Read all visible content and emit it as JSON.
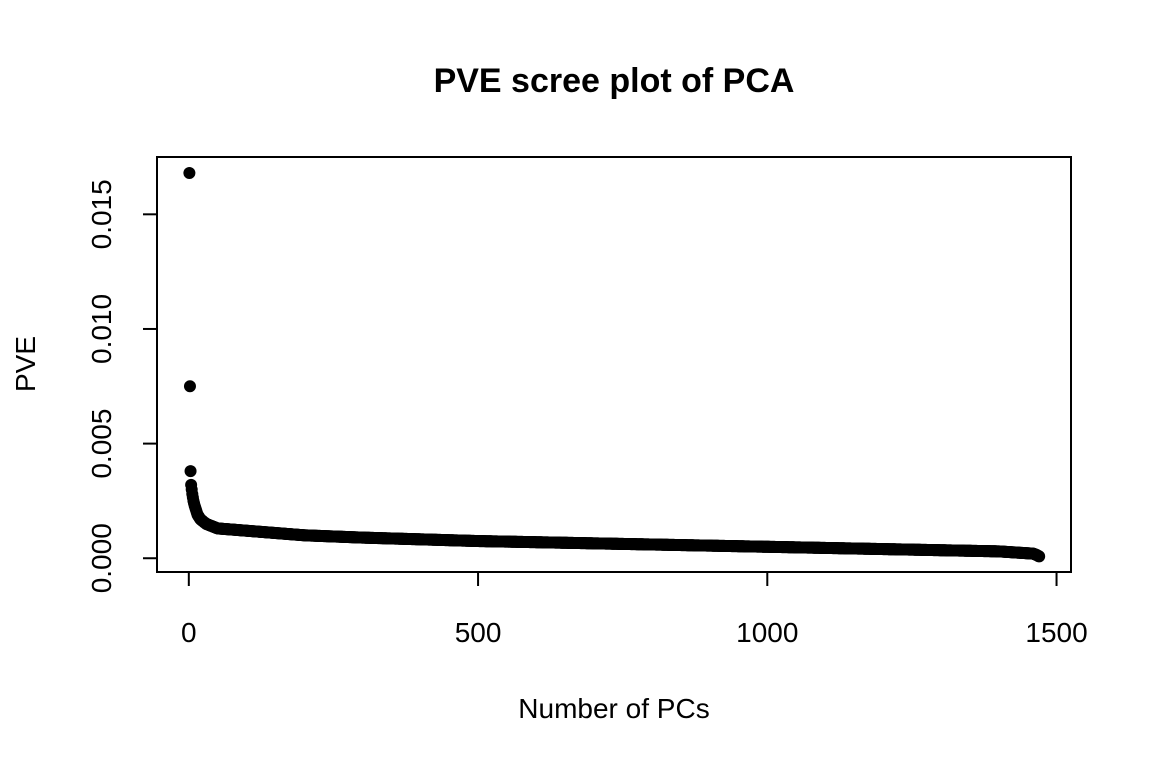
{
  "chart_data": {
    "type": "scatter",
    "title": "PVE scree plot of PCA",
    "xlabel": "Number of PCs",
    "ylabel": "PVE",
    "xlim": [
      -55,
      1525
    ],
    "ylim": [
      -0.0006,
      0.0175
    ],
    "x_ticks": [
      0,
      500,
      1000,
      1500
    ],
    "x_tick_labels": [
      "0",
      "500",
      "1000",
      "1500"
    ],
    "y_ticks": [
      0.0,
      0.005,
      0.01,
      0.015
    ],
    "y_tick_labels": [
      "0.000",
      "0.005",
      "0.010",
      "0.015"
    ],
    "grid": false,
    "legend": "none",
    "n_points": 1470,
    "point_color": "#000000",
    "points": [
      {
        "x": 1,
        "y": 0.0168
      },
      {
        "x": 2,
        "y": 0.0075
      },
      {
        "x": 3,
        "y": 0.0038
      },
      {
        "x": 4,
        "y": 0.0032
      },
      {
        "x": 5,
        "y": 0.003
      },
      {
        "x": 6,
        "y": 0.0028
      },
      {
        "x": 8,
        "y": 0.0025
      },
      {
        "x": 10,
        "y": 0.0023
      },
      {
        "x": 15,
        "y": 0.0019
      },
      {
        "x": 20,
        "y": 0.0017
      },
      {
        "x": 30,
        "y": 0.0015
      },
      {
        "x": 50,
        "y": 0.0013
      },
      {
        "x": 100,
        "y": 0.0012
      },
      {
        "x": 200,
        "y": 0.001
      },
      {
        "x": 300,
        "y": 0.0009
      },
      {
        "x": 500,
        "y": 0.00075
      },
      {
        "x": 700,
        "y": 0.00065
      },
      {
        "x": 1000,
        "y": 0.0005
      },
      {
        "x": 1200,
        "y": 0.0004
      },
      {
        "x": 1400,
        "y": 0.0003
      },
      {
        "x": 1460,
        "y": 0.0002
      },
      {
        "x": 1465,
        "y": 0.00015
      },
      {
        "x": 1470,
        "y": 8e-05
      }
    ]
  }
}
